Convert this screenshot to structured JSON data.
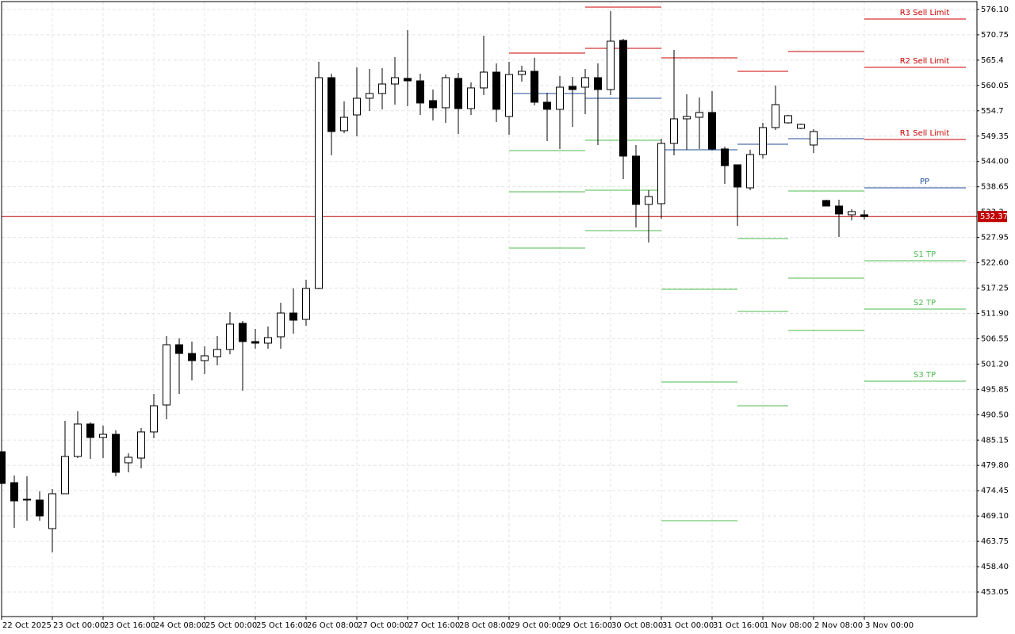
{
  "chart_data": {
    "type": "candlestick",
    "categories": [
      "22 Oct 2025",
      null,
      null,
      null,
      "23 Oct 00:00",
      null,
      null,
      null,
      "23 Oct 16:00",
      null,
      null,
      null,
      "24 Oct 08:00",
      null,
      null,
      null,
      "25 Oct 00:00",
      null,
      null,
      null,
      "25 Oct 16:00",
      null,
      null,
      null,
      "26 Oct 08:00",
      null,
      null,
      null,
      "27 Oct 00:00",
      null,
      null,
      null,
      "27 Oct 16:00",
      null,
      null,
      null,
      "28 Oct 08:00",
      null,
      null,
      null,
      "29 Oct 00:00",
      null,
      null,
      null,
      "29 Oct 16:00",
      null,
      null,
      null,
      "30 Oct 08:00",
      null,
      null,
      null,
      "31 Oct 00:00",
      null,
      null,
      null,
      "31 Oct 16:00",
      null,
      null,
      null,
      "1 Nov 08:00",
      null,
      null,
      null,
      "2 Nov 08:00",
      null,
      null,
      null,
      "3 Nov 00:00"
    ],
    "open": [
      482.68,
      476.15,
      472.64,
      472.47,
      466.44,
      473.81,
      481.68,
      488.54,
      485.69,
      486.36,
      480.34,
      481.34,
      486.87,
      492.56,
      505.28,
      503.44,
      501.93,
      502.77,
      504.28,
      509.8,
      505.95,
      505.62,
      506.96,
      511.98,
      510.64,
      517.17,
      561.7,
      550.49,
      553.83,
      557.35,
      558.35,
      560.36,
      561.54,
      561.03,
      556.85,
      555.34,
      561.54,
      555.17,
      559.53,
      562.87,
      553.5,
      562.37,
      563.04,
      556.51,
      555.01,
      559.86,
      559.69,
      561.7,
      559.19,
      569.57,
      545.13,
      534.92,
      535.08,
      547.81,
      553.0,
      553.33,
      554.34,
      546.64,
      543.29,
      538.43,
      545.46,
      551.16,
      552.16,
      550.99,
      547.47,
      535.75,
      534.58,
      532.74,
      532.74
    ],
    "high": [
      482.68,
      477.66,
      477.49,
      474.31,
      474.81,
      489.21,
      491.22,
      488.87,
      488.21,
      487.2,
      482.35,
      487.7,
      494.9,
      507.12,
      506.62,
      505.95,
      504.95,
      507.12,
      512.15,
      510.3,
      508.63,
      509.13,
      514.16,
      517.17,
      519.01,
      565.05,
      562.54,
      556.68,
      563.88,
      563.54,
      563.71,
      566.06,
      571.75,
      562.54,
      559.19,
      562.37,
      562.71,
      560.7,
      570.58,
      564.72,
      565.05,
      564.21,
      565.89,
      558.52,
      562.04,
      561.87,
      563.54,
      564.72,
      575.77,
      569.91,
      547.47,
      537.93,
      548.81,
      567.56,
      558.19,
      557.52,
      558.86,
      547.14,
      543.29,
      546.47,
      552.16,
      560.03,
      553.83,
      551.99,
      550.82,
      535.92,
      535.92,
      533.91,
      533.74
    ],
    "low": [
      475.98,
      466.61,
      468.11,
      468.11,
      461.42,
      473.81,
      481.34,
      481.17,
      481.34,
      477.49,
      478.33,
      479.16,
      485.53,
      489.55,
      494.9,
      497.75,
      499.09,
      500.93,
      503.27,
      495.57,
      504.45,
      504.45,
      504.45,
      507.63,
      509.3,
      517.0,
      545.3,
      549.98,
      549.31,
      554.67,
      555.01,
      556.01,
      555.68,
      553.83,
      552.66,
      552.16,
      549.82,
      553.83,
      558.02,
      552.33,
      549.65,
      560.87,
      555.84,
      548.31,
      546.64,
      551.32,
      554.0,
      547.47,
      558.02,
      540.27,
      530.06,
      526.88,
      531.9,
      545.3,
      546.47,
      546.64,
      546.3,
      539.27,
      530.4,
      537.93,
      544.63,
      550.65,
      551.99,
      550.82,
      545.8,
      534.58,
      528.05,
      531.57,
      531.73
    ],
    "close": [
      475.98,
      472.3,
      472.47,
      469.12,
      473.81,
      481.68,
      488.54,
      485.69,
      486.36,
      478.33,
      481.51,
      486.87,
      492.39,
      505.28,
      503.44,
      501.93,
      502.94,
      504.28,
      509.64,
      505.95,
      505.62,
      506.79,
      511.98,
      510.47,
      517.17,
      561.7,
      550.32,
      553.33,
      557.35,
      558.35,
      560.36,
      561.7,
      561.03,
      556.35,
      555.34,
      561.7,
      555.17,
      559.53,
      562.87,
      555.01,
      562.37,
      563.04,
      556.51,
      555.01,
      559.69,
      559.19,
      561.7,
      559.19,
      569.4,
      545.13,
      534.92,
      536.59,
      547.81,
      553.0,
      553.5,
      554.34,
      546.64,
      543.12,
      538.6,
      545.46,
      551.16,
      556.01,
      553.67,
      551.83,
      550.32,
      534.58,
      532.91,
      533.41,
      532.37
    ],
    "up_color": "#ffffff",
    "down_color": "#000000",
    "ylim": [
      447.86,
      577.77
    ],
    "yticks": [
      {
        "value": 576.1,
        "label": "576.10"
      },
      570.75,
      565.4,
      560.05,
      554.7,
      549.35,
      {
        "value": 544,
        "label": "544.00"
      },
      538.65,
      533.3,
      527.95,
      {
        "value": 522.6,
        "label": "522.60"
      },
      517.25,
      {
        "value": 511.9,
        "label": "511.90"
      },
      506.55,
      {
        "value": 501.2,
        "label": "501.20"
      },
      495.85,
      {
        "value": 490.5,
        "label": "490.50"
      },
      485.15,
      {
        "value": 479.8,
        "label": "479.80"
      },
      474.45,
      {
        "value": 469.1,
        "label": "469.10"
      },
      463.75,
      {
        "value": 458.4,
        "label": "458.40"
      },
      453.05
    ],
    "grid": true,
    "current_price": 532.37,
    "current_price_color": "#c00000",
    "resistance_color": "#cc0000",
    "pivot_color": "#1f4e9a",
    "support_color": "#4cbb4c",
    "pivots": [
      {
        "resistance": [
          566.89
        ],
        "pivot": 558.35,
        "support": [
          546.3,
          537.59,
          525.71
        ]
      },
      {
        "resistance": [
          576.6,
          567.9
        ],
        "pivot": 557.35,
        "support": [
          548.48,
          537.93,
          529.39
        ]
      },
      {
        "resistance": [
          565.89
        ],
        "pivot": 546.47,
        "support": [
          517.0,
          497.41,
          468.11
        ]
      },
      {
        "resistance": [
          563.04
        ],
        "pivot": 547.64,
        "support": [
          527.72,
          512.31,
          492.39
        ]
      },
      {
        "resistance": [
          567.23
        ],
        "pivot": 548.81,
        "support": [
          537.76,
          519.35,
          508.3
        ]
      },
      {
        "resistance": [
          574.09,
          563.88,
          548.64
        ],
        "pivot": 538.43,
        "support": [
          523.03,
          512.82,
          497.58
        ]
      }
    ],
    "pivot_labels": {
      "resistance": [
        "R3 Sell Limit",
        "R2 Sell Limit",
        "R1 Sell Limit"
      ],
      "pivot": "PP",
      "support": [
        "S1 TP",
        "S2 TP",
        "S3 TP"
      ]
    }
  }
}
